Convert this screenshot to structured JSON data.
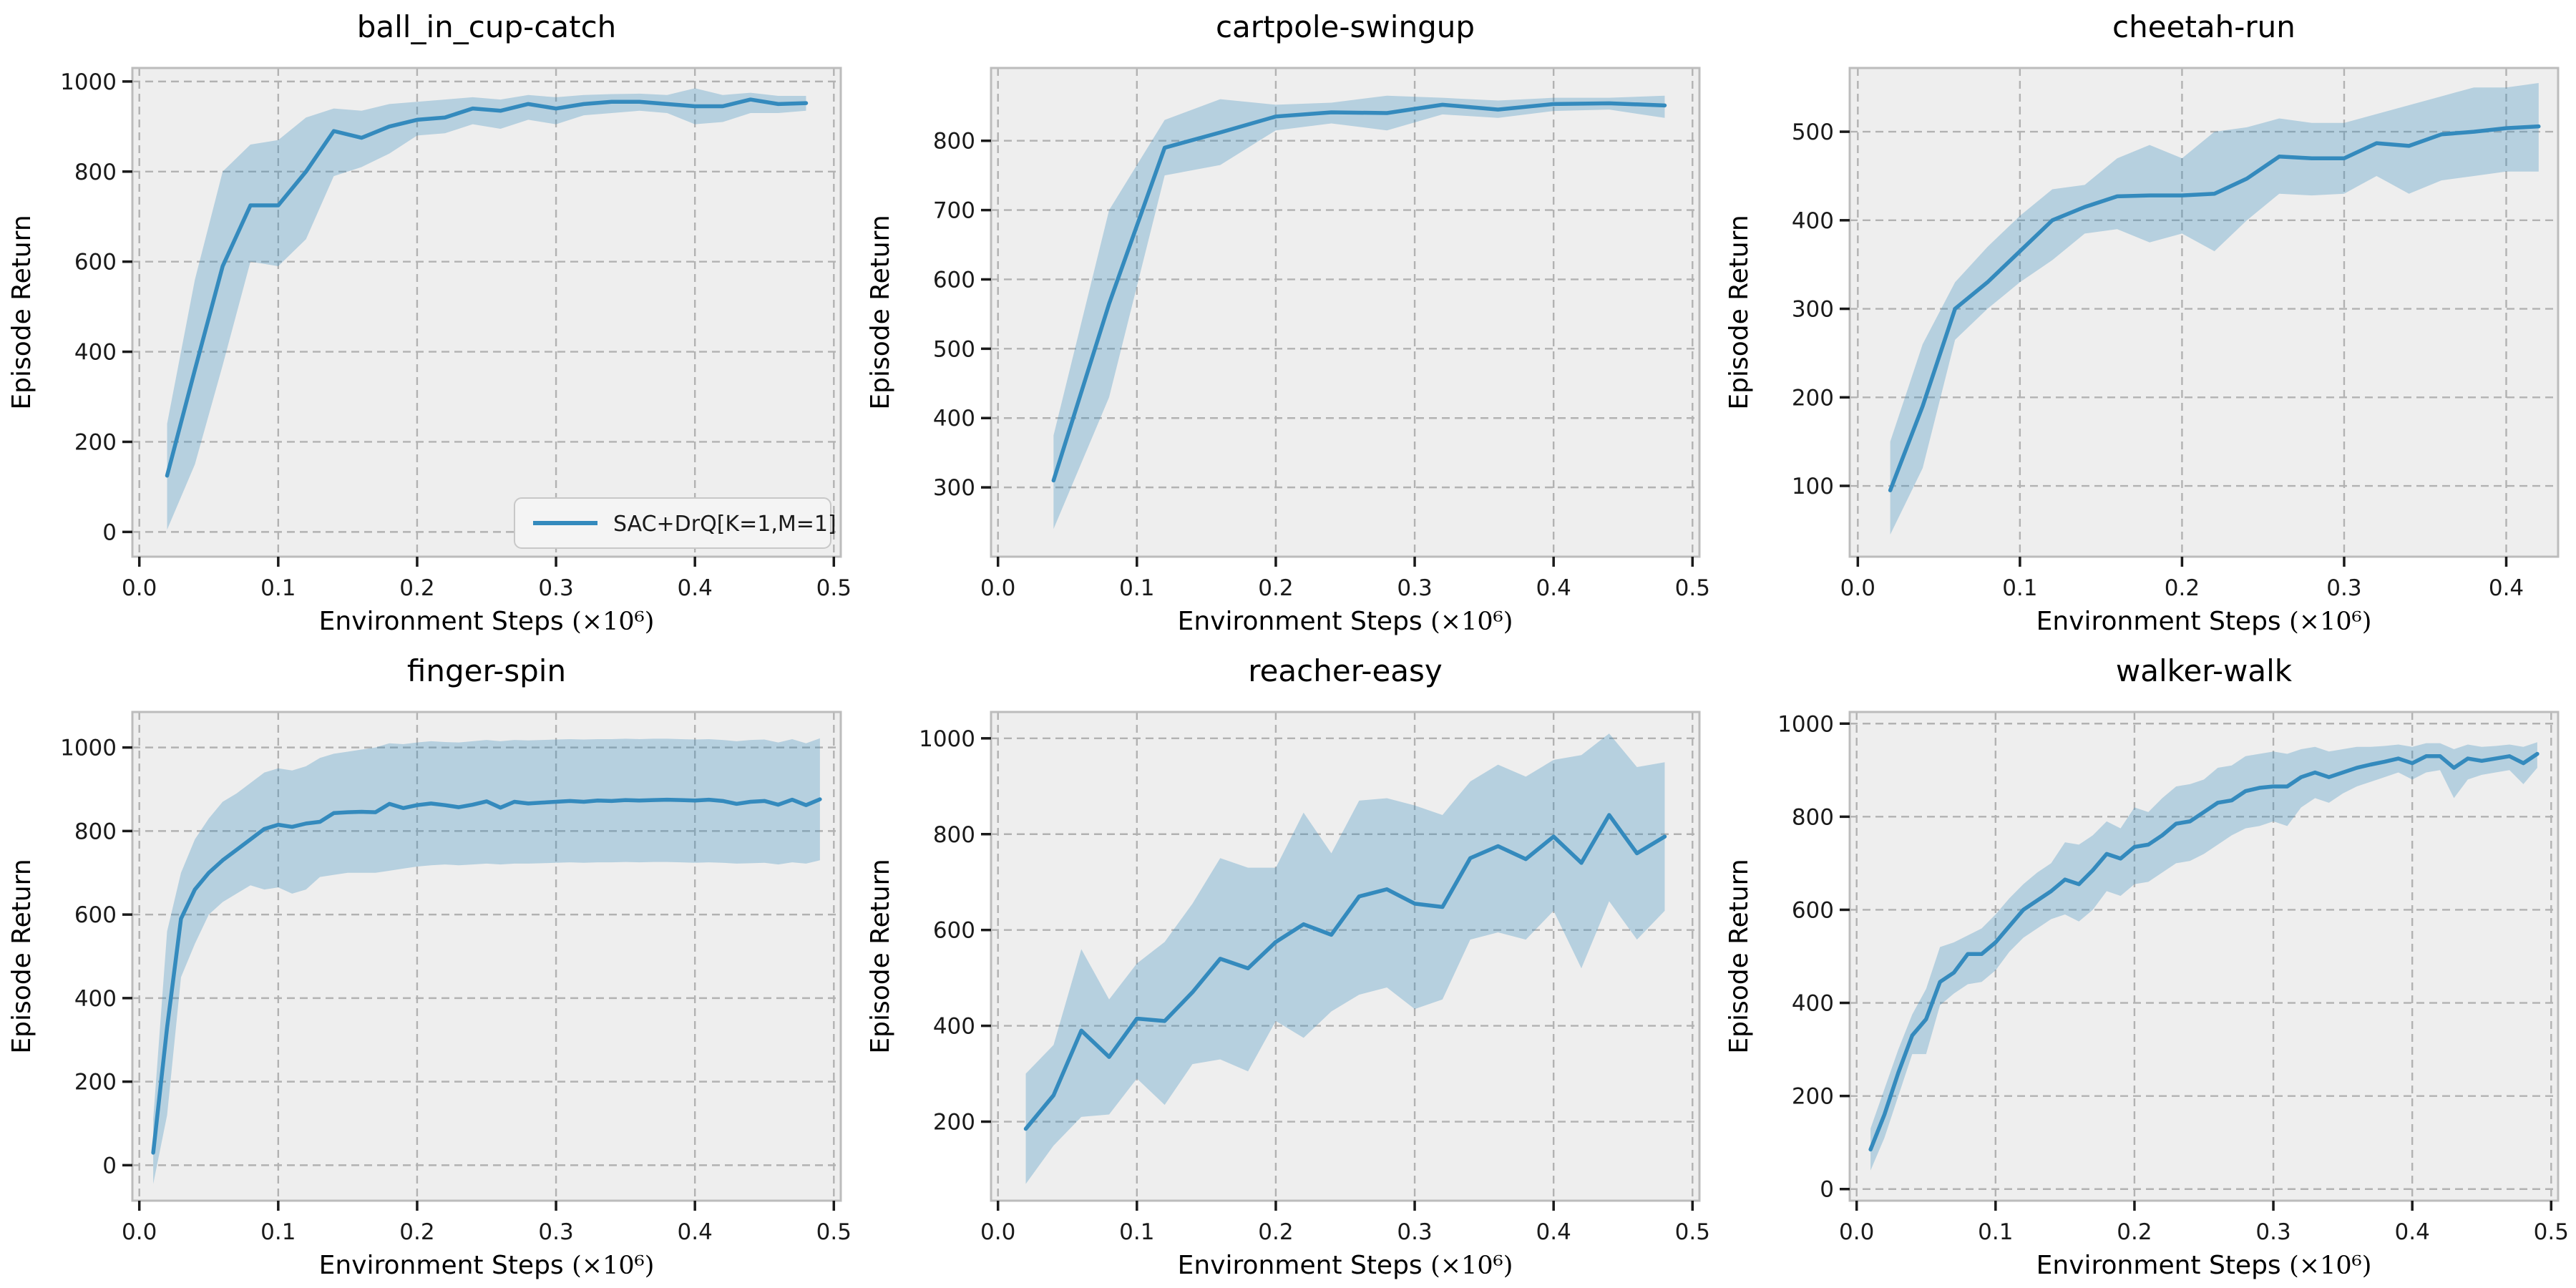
{
  "figure": {
    "background": "#ffffff",
    "columns": 3,
    "rows": 2
  },
  "style": {
    "line_color": "#348ABD",
    "band_color": "rgba(52,138,189,0.30)",
    "axes_background": "#eeeeee",
    "axes_edge_color": "#bcbcbc",
    "grid_color": "#b2b2b2",
    "tick_color": "#1a1a1a",
    "text_color": "#000000",
    "legend_background": "#f4f4f4",
    "legend_edge_color": "#c8c8c8"
  },
  "legend": {
    "label": "SAC+DrQ[K=1,M=1]",
    "location": "lower right"
  },
  "chart_data": [
    {
      "type": "line",
      "title": "ball_in_cup-catch",
      "xlabel": "Environment Steps",
      "xlabel_suffix": "(×10⁶)",
      "ylabel": "Episode Return",
      "grid": true,
      "legend": true,
      "xticks": [
        0.0,
        0.1,
        0.2,
        0.3,
        0.4,
        0.5
      ],
      "yticks": [
        0,
        200,
        400,
        600,
        800,
        1000
      ],
      "xlim": [
        -0.005,
        0.505
      ],
      "ylim": [
        -55,
        1030
      ],
      "x": [
        0.02,
        0.04,
        0.06,
        0.08,
        0.1,
        0.12,
        0.14,
        0.16,
        0.18,
        0.2,
        0.22,
        0.24,
        0.26,
        0.28,
        0.3,
        0.32,
        0.34,
        0.36,
        0.38,
        0.4,
        0.42,
        0.44,
        0.46,
        0.48
      ],
      "series": [
        {
          "name": "SAC+DrQ[K=1,M=1]",
          "values": [
            125,
            360,
            590,
            725,
            725,
            800,
            890,
            875,
            900,
            915,
            920,
            940,
            935,
            950,
            940,
            950,
            955,
            955,
            950,
            945,
            945,
            960,
            950,
            952
          ],
          "band_lo": [
            5,
            150,
            370,
            600,
            590,
            650,
            790,
            810,
            840,
            880,
            885,
            905,
            895,
            915,
            905,
            925,
            930,
            935,
            930,
            905,
            910,
            930,
            930,
            935
          ],
          "band_hi": [
            240,
            560,
            800,
            860,
            870,
            920,
            940,
            935,
            950,
            955,
            960,
            965,
            960,
            970,
            965,
            970,
            972,
            973,
            970,
            985,
            970,
            975,
            968,
            968
          ]
        }
      ]
    },
    {
      "type": "line",
      "title": "cartpole-swingup",
      "xlabel": "Environment Steps",
      "xlabel_suffix": "(×10⁶)",
      "ylabel": "Episode Return",
      "grid": true,
      "legend": false,
      "xticks": [
        0.0,
        0.1,
        0.2,
        0.3,
        0.4,
        0.5
      ],
      "yticks": [
        300,
        400,
        500,
        600,
        700,
        800
      ],
      "xlim": [
        -0.005,
        0.505
      ],
      "ylim": [
        200,
        905
      ],
      "x": [
        0.04,
        0.08,
        0.12,
        0.16,
        0.2,
        0.24,
        0.28,
        0.32,
        0.36,
        0.4,
        0.44,
        0.48
      ],
      "series": [
        {
          "name": "SAC+DrQ[K=1,M=1]",
          "values": [
            310,
            565,
            790,
            812,
            835,
            841,
            840,
            852,
            845,
            853,
            854,
            851
          ],
          "band_lo": [
            240,
            430,
            750,
            765,
            815,
            825,
            815,
            838,
            833,
            843,
            845,
            833
          ],
          "band_hi": [
            375,
            700,
            830,
            860,
            852,
            855,
            865,
            862,
            858,
            862,
            862,
            865
          ]
        }
      ]
    },
    {
      "type": "line",
      "title": "cheetah-run",
      "xlabel": "Environment Steps",
      "xlabel_suffix": "(×10⁶)",
      "ylabel": "Episode Return",
      "grid": true,
      "legend": false,
      "xticks": [
        0.0,
        0.1,
        0.2,
        0.3,
        0.4
      ],
      "yticks": [
        100,
        200,
        300,
        400,
        500
      ],
      "xlim": [
        -0.005,
        0.432
      ],
      "ylim": [
        20,
        572
      ],
      "x": [
        0.02,
        0.04,
        0.06,
        0.08,
        0.1,
        0.12,
        0.14,
        0.16,
        0.18,
        0.2,
        0.22,
        0.24,
        0.26,
        0.28,
        0.3,
        0.32,
        0.34,
        0.36,
        0.38,
        0.4,
        0.42
      ],
      "series": [
        {
          "name": "SAC+DrQ[K=1,M=1]",
          "values": [
            95,
            190,
            300,
            330,
            365,
            400,
            415,
            427,
            428,
            428,
            430,
            447,
            472,
            470,
            470,
            487,
            484,
            497,
            500,
            504,
            506
          ],
          "band_lo": [
            45,
            120,
            265,
            300,
            330,
            355,
            385,
            390,
            375,
            385,
            365,
            400,
            430,
            428,
            430,
            450,
            430,
            445,
            450,
            455,
            455
          ],
          "band_hi": [
            150,
            260,
            330,
            370,
            405,
            435,
            440,
            470,
            485,
            470,
            500,
            505,
            515,
            510,
            510,
            520,
            530,
            540,
            550,
            550,
            555
          ]
        }
      ]
    },
    {
      "type": "line",
      "title": "finger-spin",
      "xlabel": "Environment Steps",
      "xlabel_suffix": "(×10⁶)",
      "ylabel": "Episode Return",
      "grid": true,
      "legend": false,
      "xticks": [
        0.0,
        0.1,
        0.2,
        0.3,
        0.4,
        0.5
      ],
      "yticks": [
        0,
        200,
        400,
        600,
        800,
        1000
      ],
      "xlim": [
        -0.005,
        0.505
      ],
      "ylim": [
        -85,
        1085
      ],
      "x": [
        0.01,
        0.02,
        0.03,
        0.04,
        0.05,
        0.06,
        0.07,
        0.08,
        0.09,
        0.1,
        0.11,
        0.12,
        0.13,
        0.14,
        0.15,
        0.16,
        0.17,
        0.18,
        0.19,
        0.2,
        0.21,
        0.22,
        0.23,
        0.24,
        0.25,
        0.26,
        0.27,
        0.28,
        0.29,
        0.3,
        0.31,
        0.32,
        0.33,
        0.34,
        0.35,
        0.36,
        0.37,
        0.38,
        0.39,
        0.4,
        0.41,
        0.42,
        0.43,
        0.44,
        0.45,
        0.46,
        0.47,
        0.48,
        0.49
      ],
      "series": [
        {
          "name": "SAC+DrQ[K=1,M=1]",
          "values": [
            30,
            330,
            590,
            660,
            700,
            730,
            755,
            780,
            805,
            815,
            810,
            818,
            822,
            843,
            845,
            846,
            845,
            865,
            855,
            862,
            866,
            862,
            857,
            863,
            871,
            856,
            870,
            866,
            868,
            870,
            872,
            870,
            873,
            872,
            874,
            873,
            874,
            875,
            874,
            873,
            875,
            872,
            865,
            870,
            872,
            863,
            875,
            862,
            876
          ],
          "band_lo": [
            -45,
            120,
            450,
            530,
            600,
            630,
            650,
            670,
            660,
            665,
            650,
            660,
            690,
            695,
            700,
            700,
            700,
            705,
            710,
            715,
            718,
            720,
            718,
            720,
            722,
            720,
            722,
            722,
            723,
            724,
            725,
            724,
            725,
            725,
            726,
            725,
            726,
            726,
            725,
            724,
            725,
            724,
            722,
            723,
            724,
            720,
            725,
            722,
            730
          ],
          "band_hi": [
            110,
            560,
            700,
            780,
            830,
            870,
            890,
            915,
            940,
            950,
            945,
            955,
            975,
            985,
            990,
            995,
            1000,
            1010,
            1008,
            1012,
            1015,
            1013,
            1012,
            1015,
            1018,
            1015,
            1018,
            1017,
            1018,
            1019,
            1020,
            1019,
            1020,
            1020,
            1021,
            1020,
            1021,
            1021,
            1020,
            1019,
            1020,
            1018,
            1015,
            1018,
            1019,
            1012,
            1020,
            1010,
            1022
          ]
        }
      ]
    },
    {
      "type": "line",
      "title": "reacher-easy",
      "xlabel": "Environment Steps",
      "xlabel_suffix": "(×10⁶)",
      "ylabel": "Episode Return",
      "grid": true,
      "legend": false,
      "xticks": [
        0.0,
        0.1,
        0.2,
        0.3,
        0.4,
        0.5
      ],
      "yticks": [
        200,
        400,
        600,
        800,
        1000
      ],
      "xlim": [
        -0.005,
        0.505
      ],
      "ylim": [
        35,
        1055
      ],
      "x": [
        0.02,
        0.04,
        0.06,
        0.08,
        0.1,
        0.12,
        0.14,
        0.16,
        0.18,
        0.2,
        0.22,
        0.24,
        0.26,
        0.28,
        0.3,
        0.32,
        0.34,
        0.36,
        0.38,
        0.4,
        0.42,
        0.44,
        0.46,
        0.48
      ],
      "series": [
        {
          "name": "SAC+DrQ[K=1,M=1]",
          "values": [
            185,
            255,
            390,
            335,
            415,
            410,
            470,
            540,
            520,
            575,
            612,
            590,
            670,
            685,
            655,
            648,
            750,
            775,
            748,
            795,
            740,
            840,
            760,
            795
          ],
          "band_lo": [
            70,
            150,
            210,
            215,
            290,
            235,
            320,
            330,
            305,
            410,
            375,
            430,
            465,
            480,
            435,
            455,
            580,
            595,
            580,
            640,
            520,
            660,
            580,
            640
          ],
          "band_hi": [
            300,
            360,
            560,
            455,
            530,
            575,
            655,
            750,
            730,
            730,
            845,
            760,
            870,
            875,
            860,
            840,
            910,
            945,
            920,
            955,
            965,
            1010,
            940,
            950
          ]
        }
      ]
    },
    {
      "type": "line",
      "title": "walker-walk",
      "xlabel": "Environment Steps",
      "xlabel_suffix": "(×10⁶)",
      "ylabel": "Episode Return",
      "grid": true,
      "legend": false,
      "xticks": [
        0.0,
        0.1,
        0.2,
        0.3,
        0.4,
        0.5
      ],
      "yticks": [
        0,
        200,
        400,
        600,
        800,
        1000
      ],
      "xlim": [
        -0.005,
        0.505
      ],
      "ylim": [
        -25,
        1025
      ],
      "x": [
        0.01,
        0.02,
        0.03,
        0.04,
        0.05,
        0.06,
        0.07,
        0.08,
        0.09,
        0.1,
        0.11,
        0.12,
        0.13,
        0.14,
        0.15,
        0.16,
        0.17,
        0.18,
        0.19,
        0.2,
        0.21,
        0.22,
        0.23,
        0.24,
        0.25,
        0.26,
        0.27,
        0.28,
        0.29,
        0.3,
        0.31,
        0.32,
        0.33,
        0.34,
        0.35,
        0.36,
        0.37,
        0.38,
        0.39,
        0.4,
        0.41,
        0.42,
        0.43,
        0.44,
        0.45,
        0.46,
        0.47,
        0.48,
        0.49
      ],
      "series": [
        {
          "name": "SAC+DrQ[K=1,M=1]",
          "values": [
            85,
            160,
            250,
            330,
            365,
            445,
            465,
            505,
            505,
            530,
            565,
            600,
            620,
            640,
            665,
            655,
            685,
            720,
            710,
            735,
            740,
            760,
            785,
            790,
            810,
            830,
            835,
            855,
            862,
            865,
            865,
            885,
            895,
            885,
            895,
            905,
            912,
            918,
            925,
            915,
            930,
            930,
            905,
            925,
            920,
            925,
            930,
            915,
            935
          ],
          "band_lo": [
            40,
            110,
            200,
            290,
            290,
            395,
            420,
            440,
            445,
            470,
            510,
            540,
            560,
            580,
            590,
            575,
            600,
            640,
            630,
            655,
            660,
            680,
            700,
            705,
            720,
            740,
            760,
            775,
            780,
            790,
            780,
            820,
            840,
            830,
            850,
            865,
            875,
            885,
            895,
            880,
            895,
            900,
            840,
            880,
            890,
            895,
            900,
            870,
            905
          ],
          "band_hi": [
            130,
            215,
            300,
            375,
            430,
            520,
            530,
            545,
            560,
            590,
            625,
            655,
            680,
            700,
            745,
            740,
            760,
            790,
            775,
            820,
            810,
            840,
            865,
            870,
            880,
            905,
            910,
            930,
            935,
            940,
            935,
            945,
            950,
            940,
            945,
            950,
            950,
            952,
            955,
            950,
            958,
            958,
            945,
            955,
            950,
            952,
            955,
            950,
            960
          ]
        }
      ]
    }
  ]
}
